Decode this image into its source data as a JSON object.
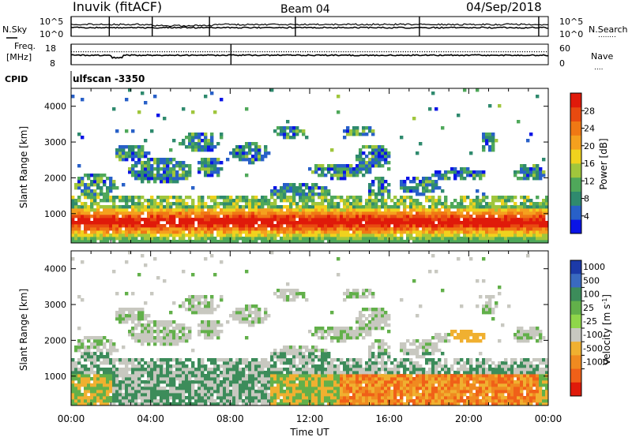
{
  "header": {
    "station": "Inuvik (fitACF)",
    "beam": "Beam 04",
    "date": "04/Sep/2018"
  },
  "noise_panel": {
    "left_label": "N.Sky",
    "right_label": "N.Search",
    "right_sub": "........",
    "left_ticks": [
      "10^5",
      "10^0"
    ],
    "right_ticks": [
      "10^5",
      "10^0"
    ]
  },
  "freq_panel": {
    "left_label_1": "Freq.",
    "left_label_2": "[MHz]",
    "left_ticks": [
      "18",
      "8"
    ],
    "right_label": "Nave",
    "right_sub": "....",
    "right_ticks": [
      "60",
      "0"
    ]
  },
  "cpid": {
    "label": "CPID",
    "value": "ulfscan  -3350"
  },
  "chart_data": [
    {
      "type": "heatmap",
      "name": "power",
      "ylabel": "Slant Range [km]",
      "ylim": [
        180,
        4500
      ],
      "yticks": [
        "1000",
        "2000",
        "3000",
        "4000"
      ],
      "xlim": [
        0,
        24
      ],
      "colorbar_label": "Power [dB]",
      "colorbar_ticks": [
        "4",
        "8",
        "12",
        "16",
        "20",
        "24",
        "28"
      ],
      "colors": [
        "#0a14e6",
        "#2860c8",
        "#2f8a6e",
        "#4fa85a",
        "#a0c63c",
        "#f0d21e",
        "#f5a01e",
        "#f07814",
        "#e84a10",
        "#e01a0a"
      ]
    },
    {
      "type": "heatmap",
      "name": "velocity",
      "ylabel": "Slant Range [km]",
      "ylim": [
        180,
        4500
      ],
      "yticks": [
        "1000",
        "2000",
        "3000",
        "4000"
      ],
      "xlim": [
        0,
        24
      ],
      "xlabel": "Time UT",
      "xticks": [
        "00:00",
        "04:00",
        "08:00",
        "12:00",
        "16:00",
        "20:00",
        "00:00"
      ],
      "colorbar_label": "Velocity [m s",
      "colorbar_unit_sup": "-1",
      "colorbar_unit_tail": "]",
      "colorbar_ticks": [
        "1000",
        "500",
        "100",
        "25",
        "-25",
        "-100",
        "-500",
        "-1000"
      ],
      "colors": [
        "#1c3aa8",
        "#3a6ac0",
        "#3c8c5a",
        "#62b04a",
        "#8fd64a",
        "#c8c8c0",
        "#f0b030",
        "#f08a20",
        "#f06018",
        "#e01a0a"
      ]
    }
  ]
}
